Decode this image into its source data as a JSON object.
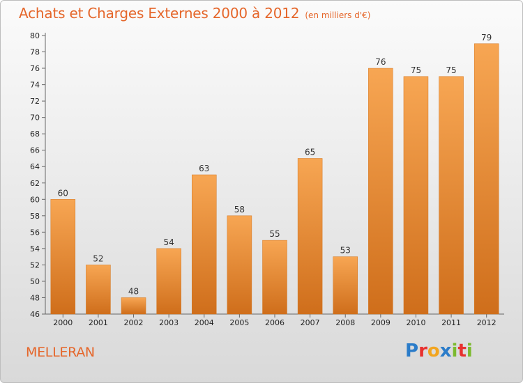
{
  "header": {
    "title": "Achats et Charges Externes 2000 à 2012",
    "subtitle": "(en milliers d'€)"
  },
  "commune": "MELLERAN",
  "logo": {
    "letters": [
      {
        "ch": "P",
        "color": "#2b7cc9"
      },
      {
        "ch": "r",
        "color": "#e8312f"
      },
      {
        "ch": "o",
        "color": "#f2a51f"
      },
      {
        "ch": "x",
        "color": "#2b7cc9"
      },
      {
        "ch": "i",
        "color": "#7cba2f"
      },
      {
        "ch": "t",
        "color": "#e8312f"
      },
      {
        "ch": "i",
        "color": "#7cba2f"
      }
    ]
  },
  "colors": {
    "bar_top": "#f7a653",
    "bar_bottom": "#cf6e1b",
    "accent": "#e5662a"
  },
  "chart_data": {
    "type": "bar",
    "categories": [
      "2000",
      "2001",
      "2002",
      "2003",
      "2004",
      "2005",
      "2006",
      "2007",
      "2008",
      "2009",
      "2010",
      "2011",
      "2012"
    ],
    "values": [
      60,
      52,
      48,
      54,
      63,
      58,
      55,
      65,
      53,
      76,
      75,
      75,
      79
    ],
    "ylim": [
      46,
      80
    ],
    "yticks": [
      46,
      48,
      50,
      52,
      54,
      56,
      58,
      60,
      62,
      64,
      66,
      68,
      70,
      72,
      74,
      76,
      78,
      80
    ],
    "grid": false,
    "data_labels": true
  }
}
